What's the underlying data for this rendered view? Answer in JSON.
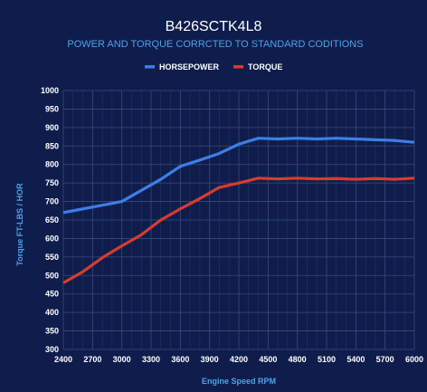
{
  "chart_data": {
    "type": "line",
    "title": "B426SCTK4L8",
    "subtitle": "POWER AND TORQUE CORRCTED TO STANDARD CODITIONS",
    "xlabel": "Engine Speed RPM",
    "ylabel": "Torque FT-LBS / HOR",
    "x": [
      2400,
      2600,
      2800,
      3000,
      3200,
      3400,
      3600,
      3800,
      4000,
      4200,
      4400,
      4600,
      4800,
      5000,
      5200,
      5400,
      5600,
      5800,
      6000
    ],
    "xticks": [
      2400,
      2700,
      3000,
      3300,
      3600,
      3900,
      4200,
      4500,
      4800,
      5100,
      5400,
      5700,
      6000
    ],
    "xlim": [
      2400,
      6000
    ],
    "ylim": [
      300,
      1000
    ],
    "yticks": [
      300,
      350,
      400,
      450,
      500,
      550,
      600,
      650,
      700,
      750,
      800,
      850,
      900,
      950,
      1000
    ],
    "grid": true,
    "legend_position": "top-center",
    "series": [
      {
        "name": "HORSEPOWER",
        "color": "#3d7ee6",
        "values": [
          670,
          680,
          690,
          700,
          730,
          760,
          795,
          812,
          830,
          855,
          871,
          869,
          871,
          869,
          871,
          869,
          867,
          865,
          860
        ]
      },
      {
        "name": "TORQUE",
        "color": "#d63c2f",
        "values": [
          480,
          510,
          548,
          580,
          610,
          650,
          680,
          708,
          738,
          750,
          763,
          761,
          763,
          761,
          762,
          760,
          762,
          760,
          763
        ]
      }
    ]
  }
}
